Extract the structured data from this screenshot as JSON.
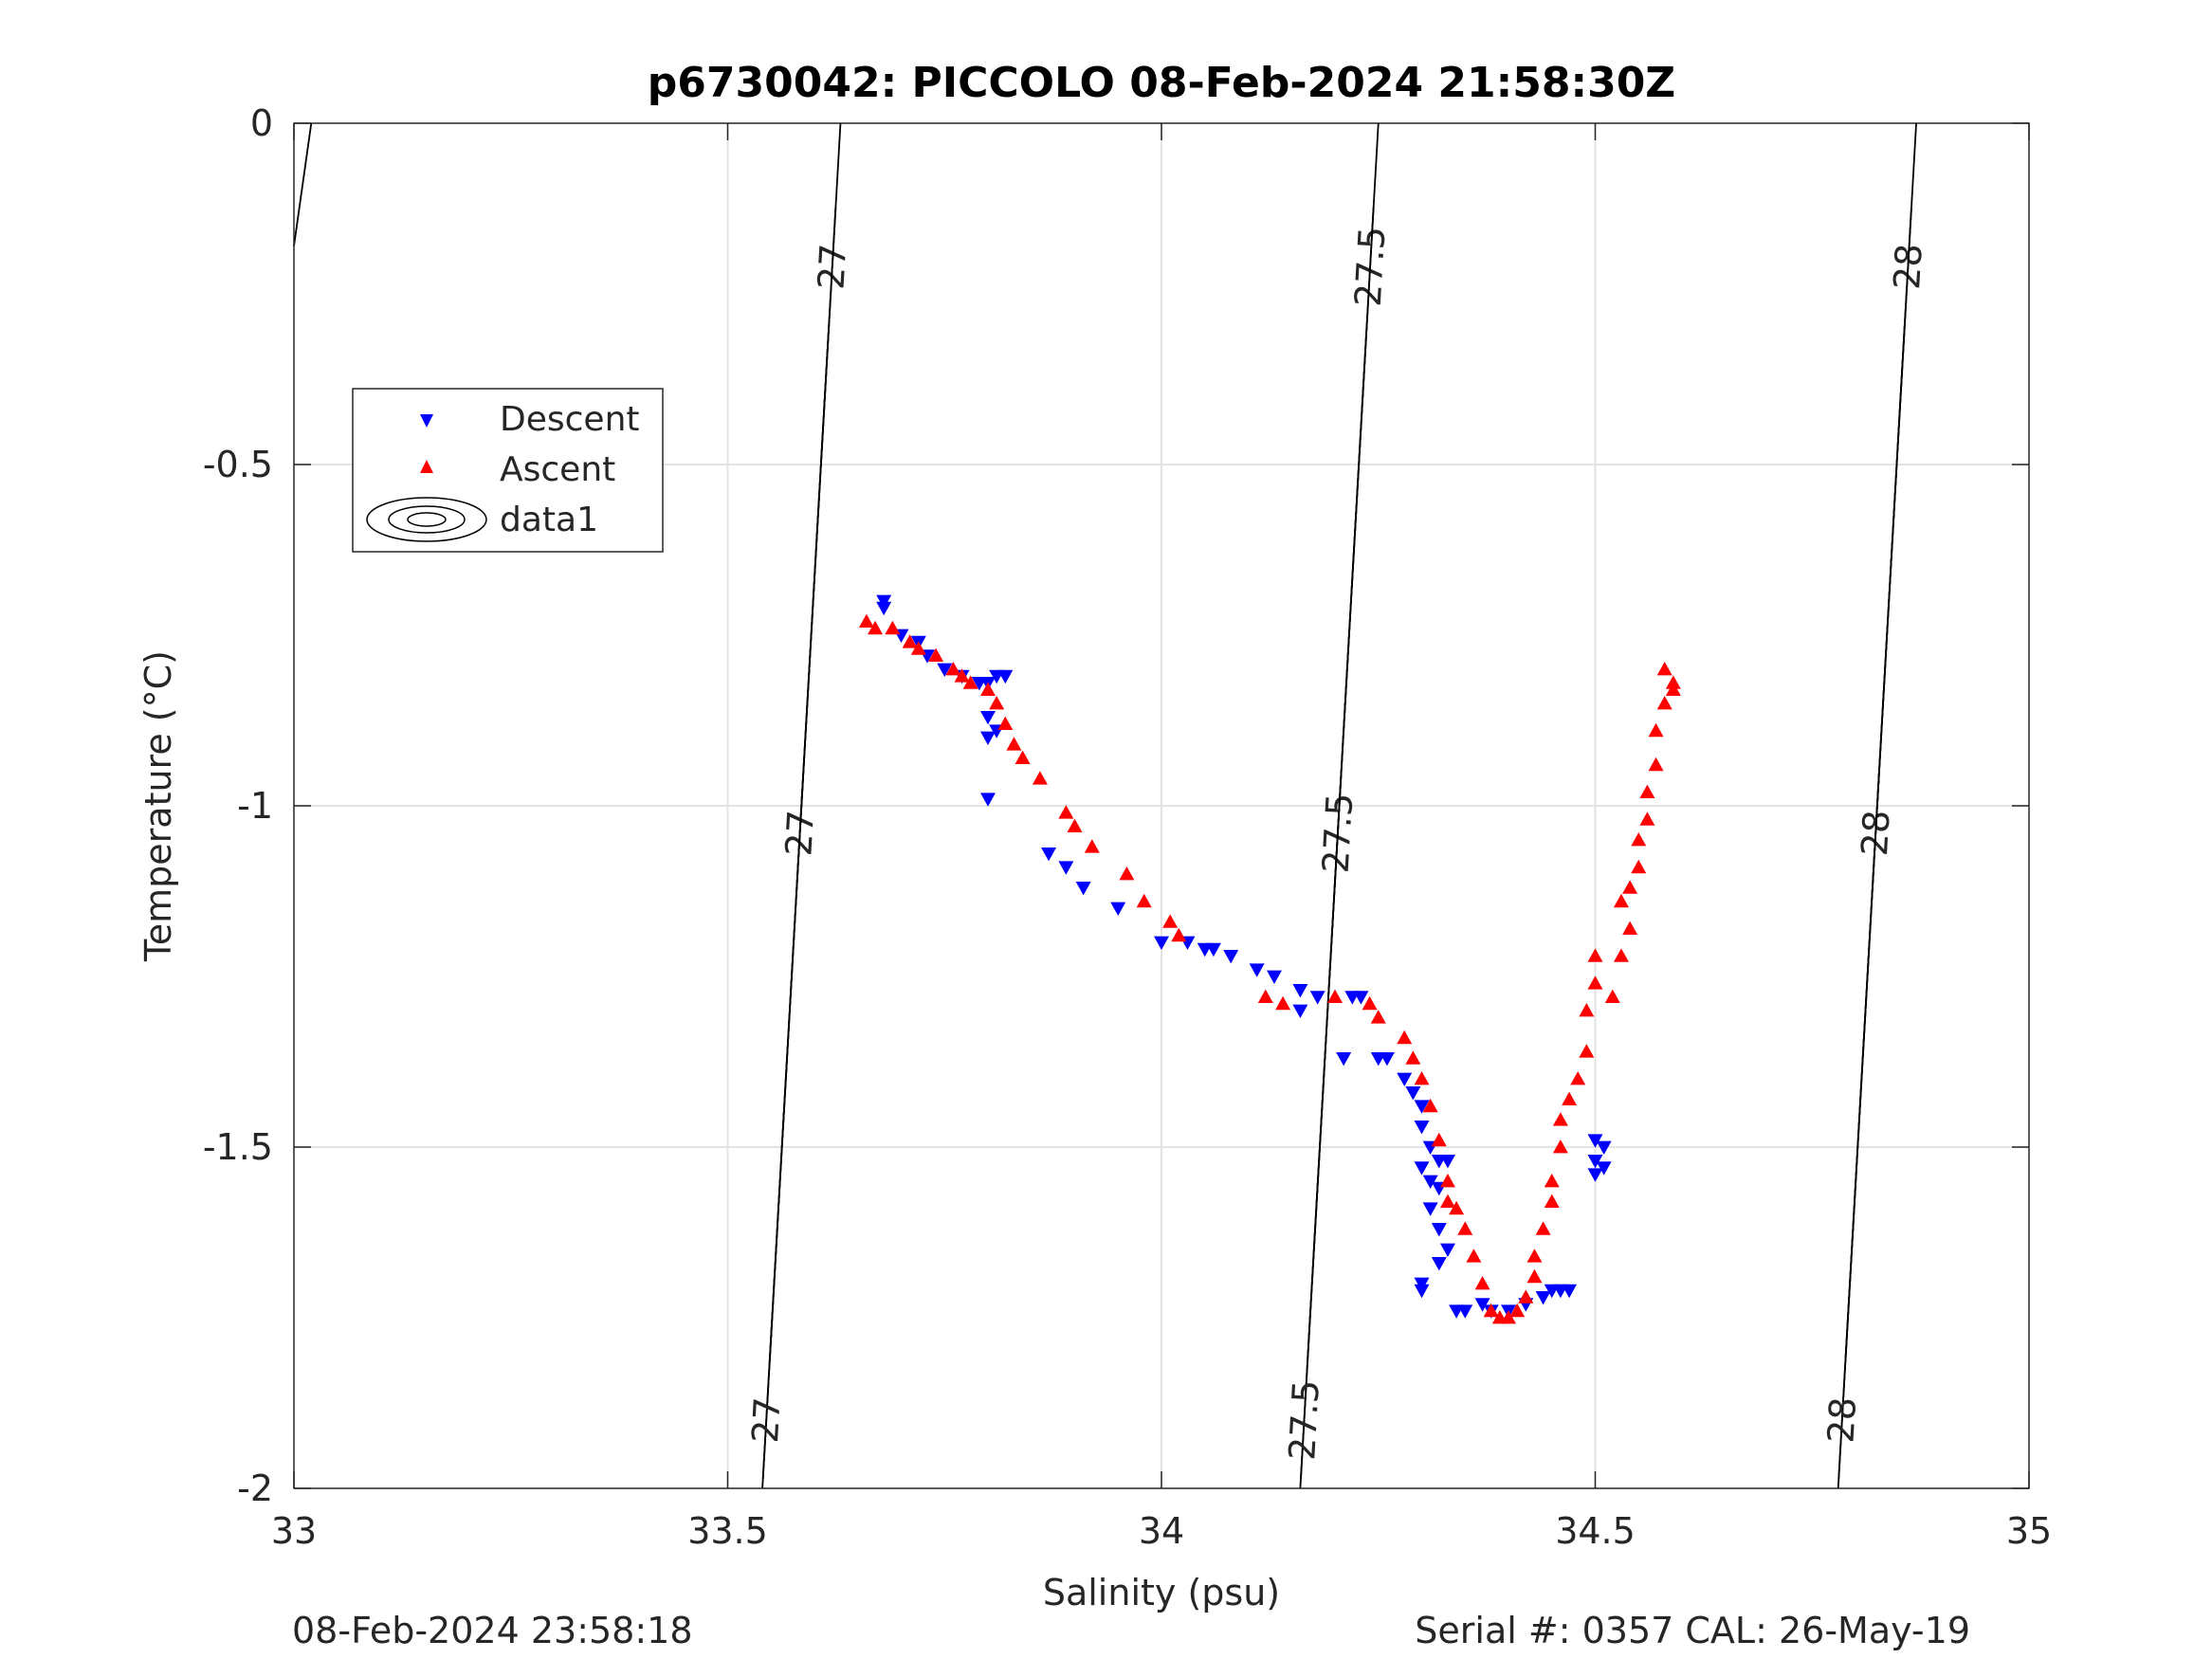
{
  "chart_data": {
    "type": "scatter",
    "title": "p6730042: PICCOLO 08-Feb-2024 21:58:30Z",
    "xlabel": "Salinity (psu)",
    "ylabel": "Temperature (°C)",
    "xlim": [
      33,
      35
    ],
    "ylim": [
      -2,
      0
    ],
    "xticks": [
      "33",
      "33.5",
      "34",
      "34.5",
      "35"
    ],
    "yticks": [
      "0",
      "-0.5",
      "-1",
      "-1.5",
      "-2"
    ],
    "grid": true,
    "legend_placement": "upper-left",
    "footer_left": "08-Feb-2024 23:58:18",
    "footer_right": "Serial #: 0357  CAL: 26-May-19",
    "series": [
      {
        "name": "Descent",
        "marker": "triangle-down",
        "color": "#0000ff",
        "points": [
          [
            33.68,
            -0.7
          ],
          [
            33.68,
            -0.71
          ],
          [
            33.7,
            -0.75
          ],
          [
            33.72,
            -0.76
          ],
          [
            33.73,
            -0.78
          ],
          [
            33.75,
            -0.8
          ],
          [
            33.77,
            -0.81
          ],
          [
            33.79,
            -0.82
          ],
          [
            33.8,
            -0.82
          ],
          [
            33.81,
            -0.81
          ],
          [
            33.82,
            -0.81
          ],
          [
            33.8,
            -0.87
          ],
          [
            33.8,
            -0.9
          ],
          [
            33.81,
            -0.89
          ],
          [
            33.8,
            -0.99
          ],
          [
            33.87,
            -1.07
          ],
          [
            33.89,
            -1.09
          ],
          [
            33.91,
            -1.12
          ],
          [
            33.95,
            -1.15
          ],
          [
            34.0,
            -1.2
          ],
          [
            34.03,
            -1.2
          ],
          [
            34.05,
            -1.21
          ],
          [
            34.06,
            -1.21
          ],
          [
            34.08,
            -1.22
          ],
          [
            34.11,
            -1.24
          ],
          [
            34.13,
            -1.25
          ],
          [
            34.16,
            -1.27
          ],
          [
            34.18,
            -1.28
          ],
          [
            34.16,
            -1.3
          ],
          [
            34.22,
            -1.28
          ],
          [
            34.23,
            -1.28
          ],
          [
            34.21,
            -1.37
          ],
          [
            34.25,
            -1.37
          ],
          [
            34.26,
            -1.37
          ],
          [
            34.28,
            -1.4
          ],
          [
            34.29,
            -1.42
          ],
          [
            34.3,
            -1.44
          ],
          [
            34.3,
            -1.47
          ],
          [
            34.31,
            -1.5
          ],
          [
            34.3,
            -1.53
          ],
          [
            34.32,
            -1.52
          ],
          [
            34.33,
            -1.52
          ],
          [
            34.31,
            -1.55
          ],
          [
            34.32,
            -1.56
          ],
          [
            34.31,
            -1.59
          ],
          [
            34.32,
            -1.62
          ],
          [
            34.33,
            -1.65
          ],
          [
            34.32,
            -1.67
          ],
          [
            34.3,
            -1.7
          ],
          [
            34.3,
            -1.71
          ],
          [
            34.34,
            -1.74
          ],
          [
            34.35,
            -1.74
          ],
          [
            34.37,
            -1.73
          ],
          [
            34.38,
            -1.74
          ],
          [
            34.4,
            -1.74
          ],
          [
            34.42,
            -1.73
          ],
          [
            34.44,
            -1.72
          ],
          [
            34.45,
            -1.71
          ],
          [
            34.46,
            -1.71
          ],
          [
            34.47,
            -1.71
          ],
          [
            34.5,
            -1.49
          ],
          [
            34.51,
            -1.5
          ],
          [
            34.5,
            -1.52
          ],
          [
            34.51,
            -1.53
          ],
          [
            34.5,
            -1.54
          ]
        ]
      },
      {
        "name": "Ascent",
        "marker": "triangle-up",
        "color": "#ff0000",
        "points": [
          [
            33.66,
            -0.73
          ],
          [
            33.67,
            -0.74
          ],
          [
            33.69,
            -0.74
          ],
          [
            33.71,
            -0.76
          ],
          [
            33.72,
            -0.77
          ],
          [
            33.74,
            -0.78
          ],
          [
            33.76,
            -0.8
          ],
          [
            33.77,
            -0.81
          ],
          [
            33.78,
            -0.82
          ],
          [
            33.8,
            -0.83
          ],
          [
            33.81,
            -0.85
          ],
          [
            33.82,
            -0.88
          ],
          [
            33.83,
            -0.91
          ],
          [
            33.84,
            -0.93
          ],
          [
            33.86,
            -0.96
          ],
          [
            33.89,
            -1.01
          ],
          [
            33.9,
            -1.03
          ],
          [
            33.92,
            -1.06
          ],
          [
            33.96,
            -1.1
          ],
          [
            33.98,
            -1.14
          ],
          [
            34.01,
            -1.17
          ],
          [
            34.02,
            -1.19
          ],
          [
            34.12,
            -1.28
          ],
          [
            34.14,
            -1.29
          ],
          [
            34.2,
            -1.28
          ],
          [
            34.24,
            -1.29
          ],
          [
            34.25,
            -1.31
          ],
          [
            34.28,
            -1.34
          ],
          [
            34.29,
            -1.37
          ],
          [
            34.3,
            -1.4
          ],
          [
            34.31,
            -1.44
          ],
          [
            34.32,
            -1.49
          ],
          [
            34.33,
            -1.55
          ],
          [
            34.33,
            -1.58
          ],
          [
            34.34,
            -1.59
          ],
          [
            34.35,
            -1.62
          ],
          [
            34.36,
            -1.66
          ],
          [
            34.37,
            -1.7
          ],
          [
            34.38,
            -1.74
          ],
          [
            34.39,
            -1.75
          ],
          [
            34.4,
            -1.75
          ],
          [
            34.41,
            -1.74
          ],
          [
            34.42,
            -1.72
          ],
          [
            34.43,
            -1.69
          ],
          [
            34.43,
            -1.66
          ],
          [
            34.44,
            -1.62
          ],
          [
            34.45,
            -1.58
          ],
          [
            34.45,
            -1.55
          ],
          [
            34.46,
            -1.5
          ],
          [
            34.46,
            -1.46
          ],
          [
            34.47,
            -1.43
          ],
          [
            34.48,
            -1.4
          ],
          [
            34.49,
            -1.36
          ],
          [
            34.49,
            -1.3
          ],
          [
            34.5,
            -1.26
          ],
          [
            34.5,
            -1.22
          ],
          [
            34.52,
            -1.28
          ],
          [
            34.53,
            -1.22
          ],
          [
            34.54,
            -1.18
          ],
          [
            34.53,
            -1.14
          ],
          [
            34.54,
            -1.12
          ],
          [
            34.55,
            -1.09
          ],
          [
            34.55,
            -1.05
          ],
          [
            34.56,
            -1.02
          ],
          [
            34.56,
            -0.98
          ],
          [
            34.57,
            -0.94
          ],
          [
            34.57,
            -0.89
          ],
          [
            34.58,
            -0.85
          ],
          [
            34.59,
            -0.83
          ],
          [
            34.58,
            -0.8
          ],
          [
            34.59,
            -0.82
          ]
        ]
      },
      {
        "name": "data1",
        "type": "contour",
        "color": "#000000",
        "levels": [
          {
            "label": "27",
            "x_at_top": 33.63,
            "x_at_bottom": 33.54
          },
          {
            "label": "27.5",
            "x_at_top": 34.25,
            "x_at_bottom": 34.16
          },
          {
            "label": "28",
            "x_at_top": 34.87,
            "x_at_bottom": 34.78
          }
        ]
      }
    ]
  }
}
